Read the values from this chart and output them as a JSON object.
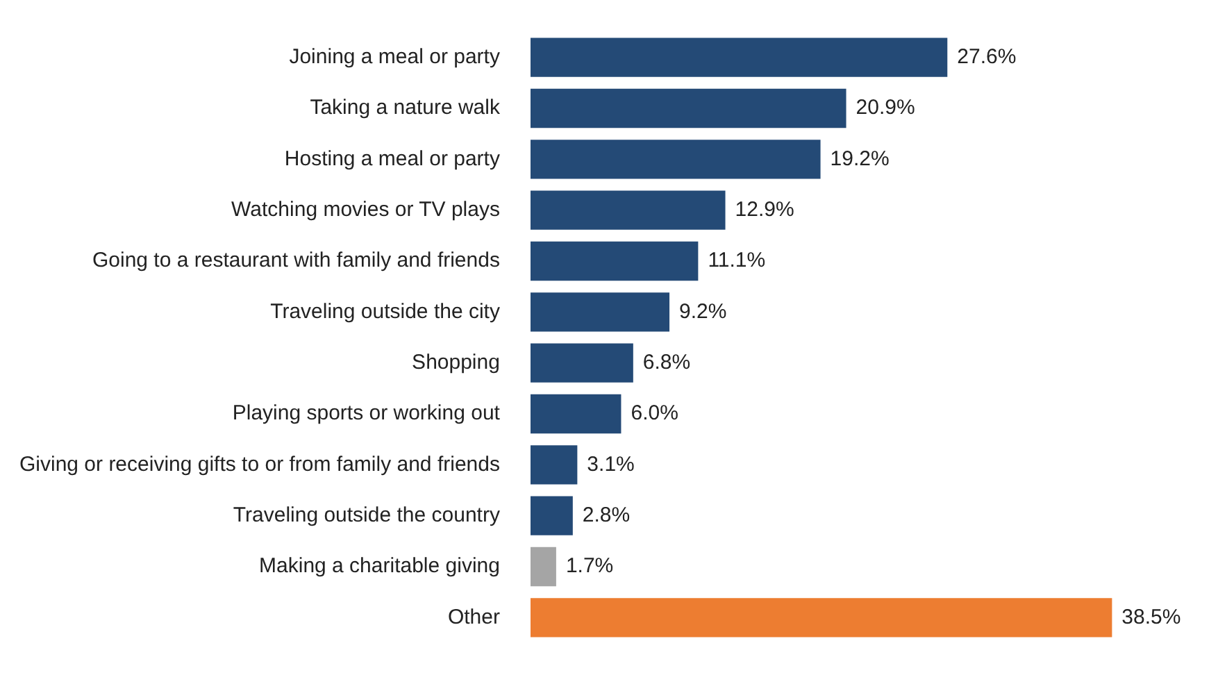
{
  "chart_data": {
    "type": "bar",
    "orientation": "horizontal",
    "categories": [
      "Joining a meal or party",
      "Taking a nature walk",
      "Hosting a meal or party",
      "Watching movies or TV plays",
      "Going to a restaurant with family and friends",
      "Traveling outside the city",
      "Shopping",
      "Playing sports or working out",
      "Giving or receiving gifts to or from family and friends",
      "Traveling outside the country",
      "Making a charitable giving",
      "Other"
    ],
    "values": [
      27.6,
      20.9,
      19.2,
      12.9,
      11.1,
      9.2,
      6.8,
      6.0,
      3.1,
      2.8,
      1.7,
      38.5
    ],
    "colors": [
      "#244a76",
      "#244a76",
      "#244a76",
      "#244a76",
      "#244a76",
      "#244a76",
      "#244a76",
      "#244a76",
      "#244a76",
      "#244a76",
      "#a5a5a5",
      "#ed7d31"
    ],
    "value_labels": [
      "27.6%",
      "20.9%",
      "19.2%",
      "12.9%",
      "11.1%",
      "9.2%",
      "6.8%",
      "6.0%",
      "3.1%",
      "2.8%",
      "1.7%",
      "38.5%"
    ],
    "tick_labels": "y",
    "legend": false
  }
}
